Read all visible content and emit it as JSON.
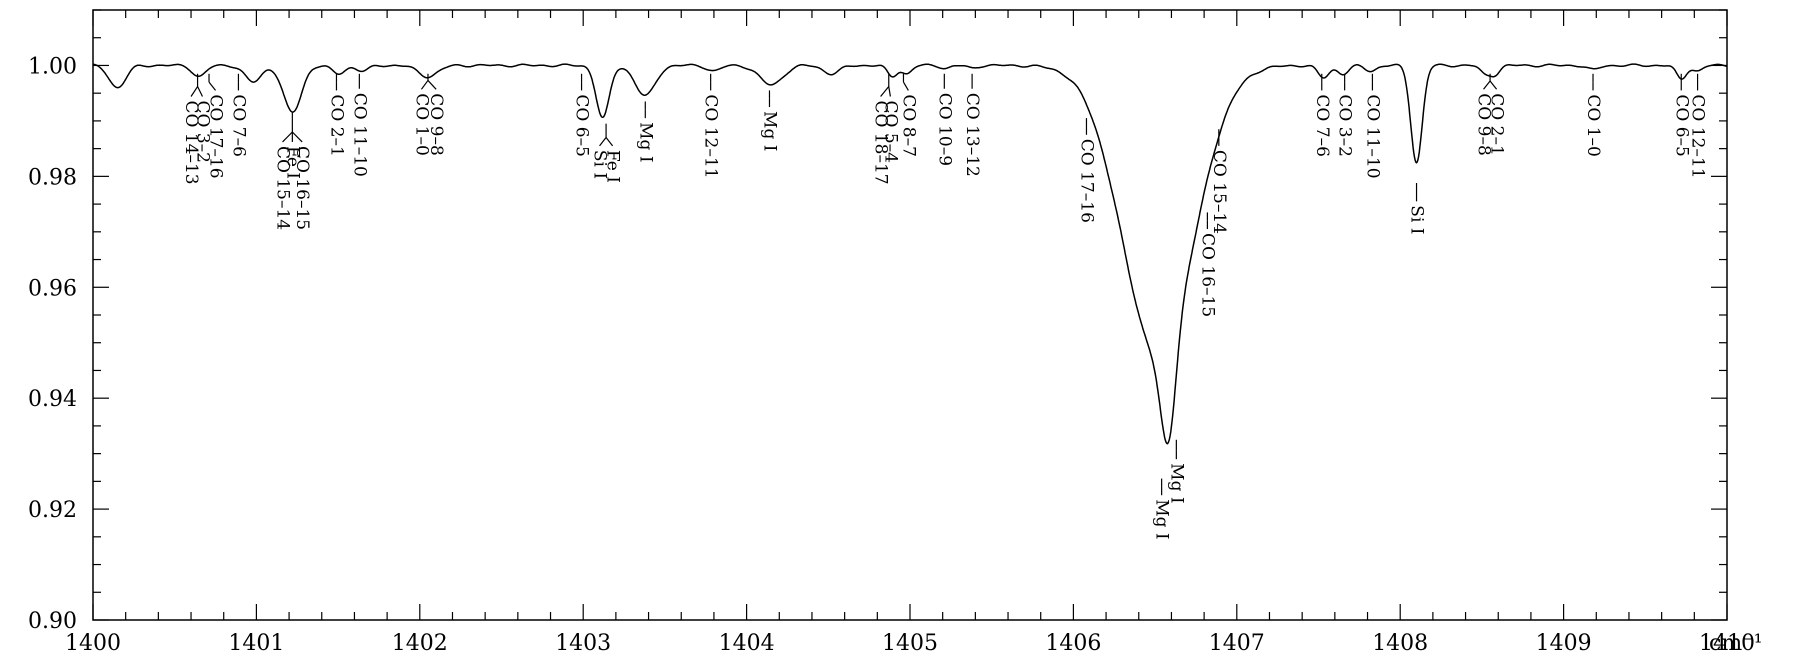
{
  "chart_data": {
    "type": "line",
    "title": "",
    "xlabel": "",
    "ylabel": "",
    "x_unit": "cm⁻¹",
    "xlim": [
      1400,
      1410
    ],
    "ylim": [
      0.9,
      1.01
    ],
    "x_ticks": [
      "1400",
      "1401",
      "1402",
      "1403",
      "1404",
      "1405",
      "1406",
      "1407",
      "1408",
      "1409",
      "1410"
    ],
    "y_ticks": [
      "0.90",
      "0.92",
      "0.94",
      "0.96",
      "0.98",
      "1.00"
    ],
    "grid": false,
    "series": [
      {
        "continuum": 1.0,
        "absorption_lines": [
          {
            "center": 1400.15,
            "depth": 0.004,
            "width": 0.05
          },
          {
            "center": 1400.65,
            "depth": 0.002,
            "width": 0.04
          },
          {
            "center": 1400.98,
            "depth": 0.003,
            "width": 0.05
          },
          {
            "center": 1401.22,
            "depth": 0.0085,
            "width": 0.055
          },
          {
            "center": 1401.5,
            "depth": 0.0015,
            "width": 0.04
          },
          {
            "center": 1401.65,
            "depth": 0.001,
            "width": 0.04
          },
          {
            "center": 1402.05,
            "depth": 0.002,
            "width": 0.06
          },
          {
            "center": 1403.12,
            "depth": 0.0095,
            "width": 0.04
          },
          {
            "center": 1403.38,
            "depth": 0.0055,
            "width": 0.06
          },
          {
            "center": 1403.8,
            "depth": 0.001,
            "width": 0.04
          },
          {
            "center": 1404.15,
            "depth": 0.0035,
            "width": 0.07
          },
          {
            "center": 1404.52,
            "depth": 0.0015,
            "width": 0.05
          },
          {
            "center": 1404.89,
            "depth": 0.002,
            "width": 0.03
          },
          {
            "center": 1404.98,
            "depth": 0.0015,
            "width": 0.03
          },
          {
            "center": 1405.22,
            "depth": 0.0005,
            "width": 0.03
          },
          {
            "center": 1405.38,
            "depth": 0.0005,
            "width": 0.03
          },
          {
            "center": 1406.52,
            "depth": 0.052,
            "width": 0.22
          },
          {
            "center": 1406.58,
            "depth": 0.018,
            "width": 0.045
          },
          {
            "center": 1407.53,
            "depth": 0.0022,
            "width": 0.035
          },
          {
            "center": 1407.65,
            "depth": 0.0015,
            "width": 0.035
          },
          {
            "center": 1407.82,
            "depth": 0.001,
            "width": 0.035
          },
          {
            "center": 1408.1,
            "depth": 0.0175,
            "width": 0.035
          },
          {
            "center": 1408.52,
            "depth": 0.0015,
            "width": 0.03
          },
          {
            "center": 1408.58,
            "depth": 0.0015,
            "width": 0.03
          },
          {
            "center": 1409.18,
            "depth": 0.0008,
            "width": 0.035
          },
          {
            "center": 1409.72,
            "depth": 0.0025,
            "width": 0.03
          },
          {
            "center": 1409.82,
            "depth": 0.001,
            "width": 0.03
          }
        ]
      }
    ],
    "annotations": [
      {
        "labels": [
          {
            "x": 1400.6,
            "text": "CO 14–13"
          },
          {
            "x": 1400.67,
            "text": "CO 3–2"
          }
        ],
        "x_top": 1400.64,
        "y_top": 0.9985,
        "y_split": 0.9962,
        "y_bottom": 0.9944
      },
      {
        "labels": [
          {
            "x": 1400.75,
            "text": "CO 17–16"
          }
        ],
        "x_top": 1400.71,
        "y_top": 0.9985,
        "y_split": 0.997,
        "y_bottom": 0.9955
      },
      {
        "labels": [
          {
            "x": 1400.89,
            "text": "CO 7–6"
          }
        ],
        "x_top": 1400.89,
        "y_top": 0.9985,
        "y_split": 0.997,
        "y_bottom": 0.9955
      },
      {
        "labels": [
          {
            "x": 1401.16,
            "text": "CO 15–14"
          },
          {
            "x": 1401.22,
            "text": "Fe I"
          },
          {
            "x": 1401.28,
            "text": "CO 16–15"
          }
        ],
        "x_top": 1401.22,
        "y_top": 0.9915,
        "y_split": 0.988,
        "y_bottom": 0.9862
      },
      {
        "labels": [
          {
            "x": 1401.49,
            "text": "CO 2–1"
          }
        ],
        "x_top": 1401.49,
        "y_top": 0.9985,
        "y_split": 0.997,
        "y_bottom": 0.9955
      },
      {
        "labels": [
          {
            "x": 1401.63,
            "text": "CO 11–10"
          }
        ],
        "x_top": 1401.63,
        "y_top": 0.9985,
        "y_split": 0.9972,
        "y_bottom": 0.9958
      },
      {
        "labels": [
          {
            "x": 1402.01,
            "text": "CO 1–0"
          },
          {
            "x": 1402.1,
            "text": "CO 9–8"
          }
        ],
        "x_top": 1402.05,
        "y_top": 0.9985,
        "y_split": 0.9973,
        "y_bottom": 0.9957
      },
      {
        "labels": [
          {
            "x": 1402.99,
            "text": "CO 6–5"
          }
        ],
        "x_top": 1402.99,
        "y_top": 0.9985,
        "y_split": 0.997,
        "y_bottom": 0.9955
      },
      {
        "labels": [
          {
            "x": 1403.1,
            "text": "Si I"
          },
          {
            "x": 1403.18,
            "text": "Fe I"
          }
        ],
        "x_top": 1403.14,
        "y_top": 0.9895,
        "y_split": 0.987,
        "y_bottom": 0.9855
      },
      {
        "labels": [
          {
            "x": 1403.38,
            "text": "Mg I"
          }
        ],
        "x_top": 1403.38,
        "y_top": 0.9935,
        "y_split": 0.992,
        "y_bottom": 0.9905
      },
      {
        "labels": [
          {
            "x": 1403.78,
            "text": "CO 12–11"
          }
        ],
        "x_top": 1403.78,
        "y_top": 0.9985,
        "y_split": 0.997,
        "y_bottom": 0.9955
      },
      {
        "labels": [
          {
            "x": 1404.14,
            "text": "Mg I"
          }
        ],
        "x_top": 1404.14,
        "y_top": 0.9955,
        "y_split": 0.994,
        "y_bottom": 0.9925
      },
      {
        "labels": [
          {
            "x": 1404.82,
            "text": "CO 18–17"
          },
          {
            "x": 1404.88,
            "text": "CO 5–4"
          }
        ],
        "x_top": 1404.87,
        "y_top": 0.9985,
        "y_split": 0.9962,
        "y_bottom": 0.9944
      },
      {
        "labels": [
          {
            "x": 1404.99,
            "text": "CO 8–7"
          }
        ],
        "x_top": 1404.96,
        "y_top": 0.9985,
        "y_split": 0.997,
        "y_bottom": 0.9955
      },
      {
        "labels": [
          {
            "x": 1405.21,
            "text": "CO 10–9"
          }
        ],
        "x_top": 1405.21,
        "y_top": 0.9985,
        "y_split": 0.9972,
        "y_bottom": 0.9958
      },
      {
        "labels": [
          {
            "x": 1405.38,
            "text": "CO 13–12"
          }
        ],
        "x_top": 1405.38,
        "y_top": 0.9985,
        "y_split": 0.9972,
        "y_bottom": 0.9958
      },
      {
        "labels": [
          {
            "x": 1406.08,
            "text": "CO 17–16"
          }
        ],
        "x_top": 1406.08,
        "y_top": 0.9905,
        "y_split": 0.989,
        "y_bottom": 0.9875
      },
      {
        "labels": [
          {
            "x": 1406.89,
            "text": "CO 15–14"
          }
        ],
        "x_top": 1406.89,
        "y_top": 0.9885,
        "y_split": 0.987,
        "y_bottom": 0.9855
      },
      {
        "labels": [
          {
            "x": 1406.82,
            "text": "CO 16–15"
          }
        ],
        "x_top": 1406.82,
        "y_top": 0.9735,
        "y_split": 0.972,
        "y_bottom": 0.9705
      },
      {
        "labels": [
          {
            "x": 1406.63,
            "text": "Mg I"
          }
        ],
        "x_top": 1406.63,
        "y_top": 0.9325,
        "y_split": 0.9305,
        "y_bottom": 0.929
      },
      {
        "labels": [
          {
            "x": 1406.54,
            "text": "Mg I"
          }
        ],
        "x_top": 1406.54,
        "y_top": 0.9255,
        "y_split": 0.924,
        "y_bottom": 0.9225
      },
      {
        "labels": [
          {
            "x": 1407.52,
            "text": "CO 7–6"
          }
        ],
        "x_top": 1407.52,
        "y_top": 0.9985,
        "y_split": 0.997,
        "y_bottom": 0.9955
      },
      {
        "labels": [
          {
            "x": 1407.66,
            "text": "CO 3–2"
          }
        ],
        "x_top": 1407.66,
        "y_top": 0.9985,
        "y_split": 0.997,
        "y_bottom": 0.9955
      },
      {
        "labels": [
          {
            "x": 1407.83,
            "text": "CO 11–10"
          }
        ],
        "x_top": 1407.83,
        "y_top": 0.9985,
        "y_split": 0.997,
        "y_bottom": 0.9955
      },
      {
        "labels": [
          {
            "x": 1408.1,
            "text": "Si I"
          }
        ],
        "x_top": 1408.1,
        "y_top": 0.9788,
        "y_split": 0.977,
        "y_bottom": 0.9755
      },
      {
        "labels": [
          {
            "x": 1408.51,
            "text": "CO 9–8"
          },
          {
            "x": 1408.59,
            "text": "CO 2–1"
          }
        ],
        "x_top": 1408.55,
        "y_top": 0.9985,
        "y_split": 0.9972,
        "y_bottom": 0.9957
      },
      {
        "labels": [
          {
            "x": 1409.18,
            "text": "CO 1–0"
          }
        ],
        "x_top": 1409.18,
        "y_top": 0.9985,
        "y_split": 0.997,
        "y_bottom": 0.9955
      },
      {
        "labels": [
          {
            "x": 1409.72,
            "text": "CO 6–5"
          }
        ],
        "x_top": 1409.72,
        "y_top": 0.9985,
        "y_split": 0.9972,
        "y_bottom": 0.9955
      },
      {
        "labels": [
          {
            "x": 1409.82,
            "text": "CO 12–11"
          }
        ],
        "x_top": 1409.82,
        "y_top": 0.9985,
        "y_split": 0.9972,
        "y_bottom": 0.9955
      }
    ]
  }
}
